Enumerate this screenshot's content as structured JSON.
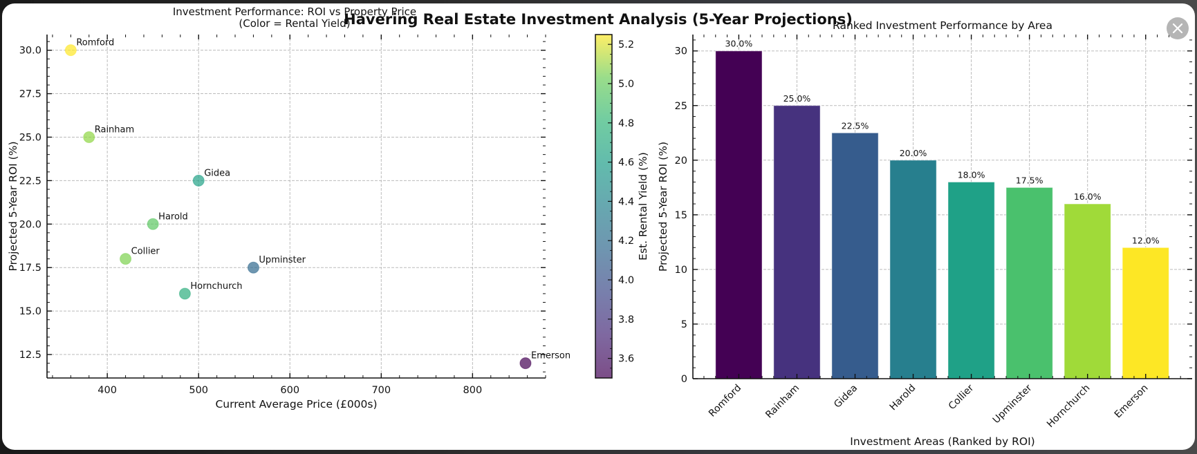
{
  "modal": {
    "close_label": "close",
    "close_icon": "close-icon"
  },
  "figure": {
    "suptitle": "Havering Real Estate Investment Analysis (5-Year Projections)"
  },
  "chart_data": [
    {
      "type": "scatter",
      "title": "Investment Performance: ROI vs Property Price",
      "subtitle": "(Color = Rental Yield)",
      "xlabel": "Current Average Price (£000s)",
      "ylabel": "Projected 5-Year ROI (%)",
      "xlim": [
        334,
        880
      ],
      "ylim": [
        11.15,
        30.9
      ],
      "xticks": [
        400,
        500,
        600,
        700,
        800
      ],
      "xtick_labels": [
        "400",
        "500",
        "600",
        "700",
        "800"
      ],
      "yticks": [
        12.5,
        15.0,
        17.5,
        20.0,
        22.5,
        25.0,
        27.5,
        30.0
      ],
      "ytick_labels": [
        "12.5",
        "15.0",
        "17.5",
        "20.0",
        "22.5",
        "25.0",
        "27.5",
        "30.0"
      ],
      "grid": true,
      "colormap": "viridis",
      "points": [
        {
          "label": "Romford",
          "x": 360,
          "y": 30.0,
          "yield": 5.25
        },
        {
          "label": "Rainham",
          "x": 380,
          "y": 25.0,
          "yield": 4.95
        },
        {
          "label": "Gidea",
          "x": 500,
          "y": 22.5,
          "yield": 4.5
        },
        {
          "label": "Harold",
          "x": 450,
          "y": 20.0,
          "yield": 4.8
        },
        {
          "label": "Collier",
          "x": 420,
          "y": 18.0,
          "yield": 4.9
        },
        {
          "label": "Upminster",
          "x": 560,
          "y": 17.5,
          "yield": 4.1
        },
        {
          "label": "Hornchurch",
          "x": 485,
          "y": 16.0,
          "yield": 4.6
        },
        {
          "label": "Emerson",
          "x": 858,
          "y": 12.0,
          "yield": 3.5
        }
      ],
      "colorbar": {
        "label": "Est. Rental Yield (%)",
        "range": [
          3.5,
          5.25
        ],
        "ticks": [
          3.6,
          3.8,
          4.0,
          4.2,
          4.4,
          4.6,
          4.8,
          5.0,
          5.2
        ],
        "tick_labels": [
          "3.6",
          "3.8",
          "4.0",
          "4.2",
          "4.4",
          "4.6",
          "4.8",
          "5.0",
          "5.2"
        ]
      }
    },
    {
      "type": "bar",
      "title": "Ranked Investment Performance by Area",
      "xlabel": "Investment Areas (Ranked by ROI)",
      "ylabel": "Projected 5-Year ROI (%)",
      "categories": [
        "Romford",
        "Rainham",
        "Gidea",
        "Harold",
        "Collier",
        "Upminster",
        "Hornchurch",
        "Emerson"
      ],
      "values": [
        30.0,
        25.0,
        22.5,
        20.0,
        18.0,
        17.5,
        16.0,
        12.0
      ],
      "value_labels": [
        "30.0%",
        "25.0%",
        "22.5%",
        "20.0%",
        "18.0%",
        "17.5%",
        "16.0%",
        "12.0%"
      ],
      "colors": [
        "#440154",
        "#46327e",
        "#365c8d",
        "#277f8e",
        "#1fa187",
        "#4ac16d",
        "#a0da39",
        "#fde725"
      ],
      "ylim": [
        0,
        31.5
      ],
      "yticks": [
        0,
        5,
        10,
        15,
        20,
        25,
        30
      ],
      "ytick_labels": [
        "0",
        "5",
        "10",
        "15",
        "20",
        "25",
        "30"
      ],
      "grid": true
    }
  ]
}
